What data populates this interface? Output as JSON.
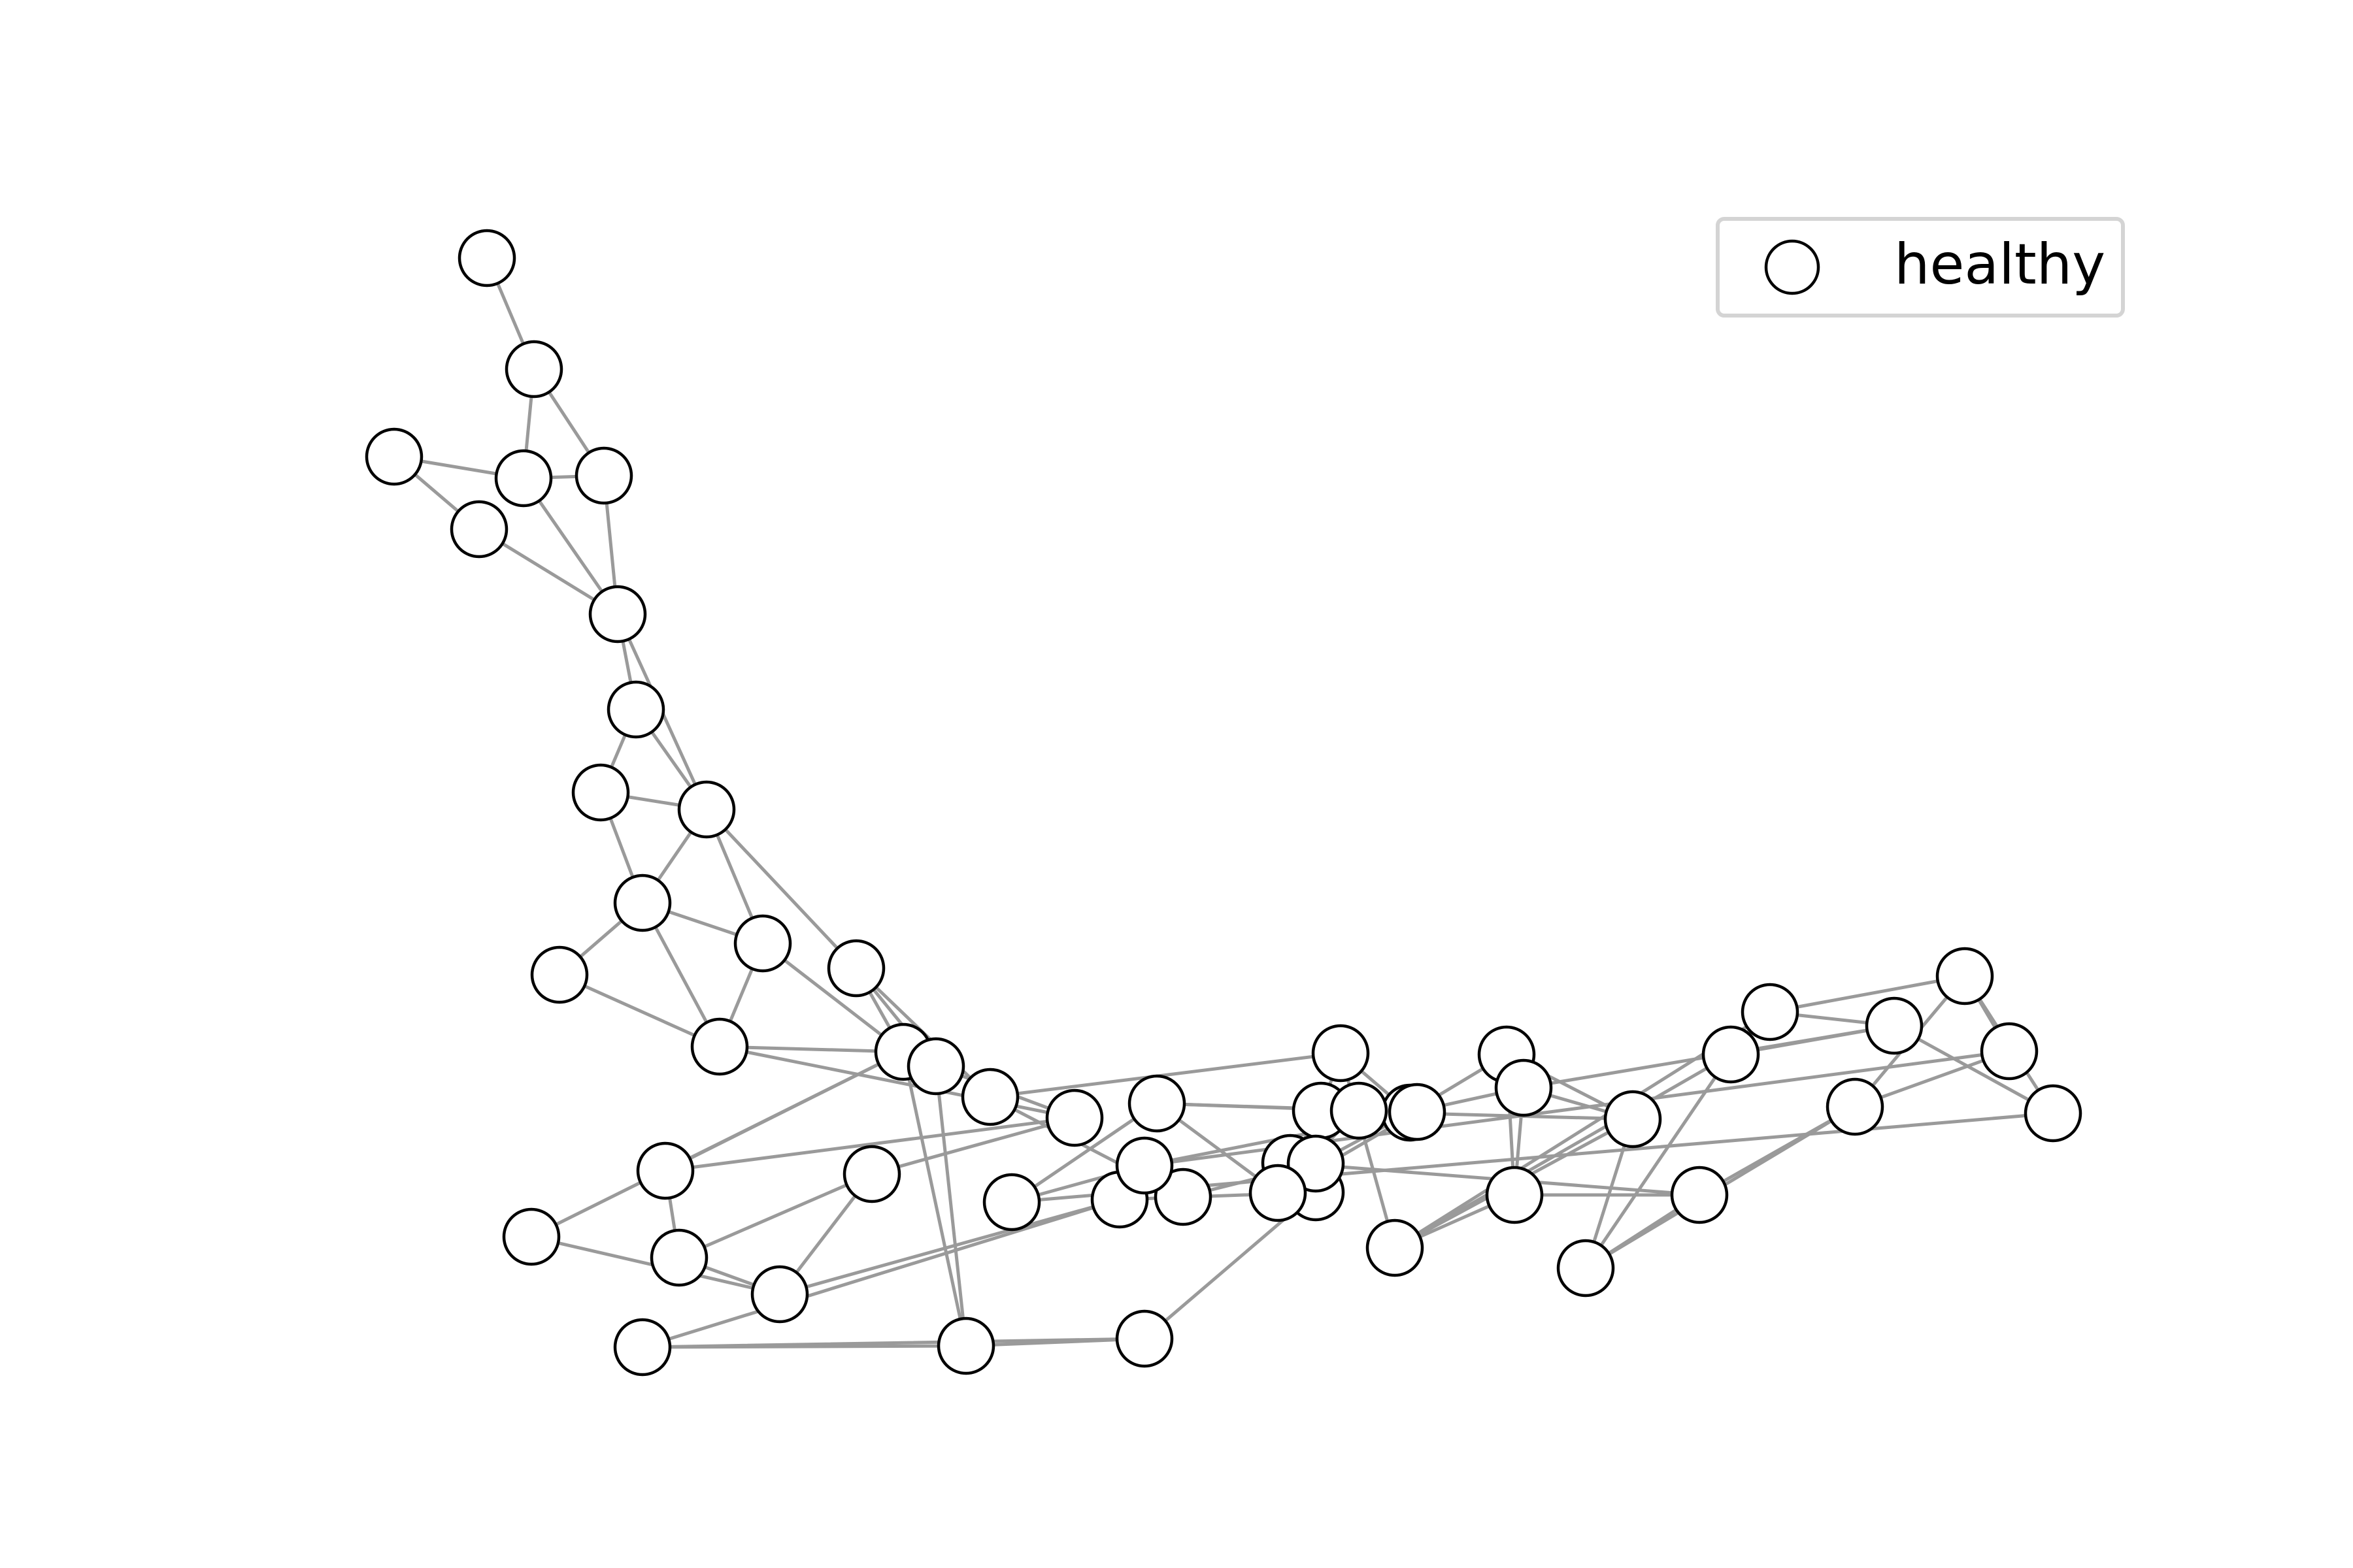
{
  "legend": {
    "label": "healthy",
    "marker_fill": "#ffffff",
    "marker_stroke": "#000000",
    "placement": "upper right"
  },
  "style": {
    "edge_color": "#9a9a9a",
    "node_fill": "#ffffff",
    "node_stroke": "#000000"
  },
  "graph": {
    "node_count": 55,
    "edges": [
      [
        "n0",
        "n1"
      ],
      [
        "n1",
        "n2"
      ],
      [
        "n1",
        "n3"
      ],
      [
        "n2",
        "n3"
      ],
      [
        "n4",
        "n2"
      ],
      [
        "n4",
        "n5"
      ],
      [
        "n2",
        "n6"
      ],
      [
        "n3",
        "n6"
      ],
      [
        "n5",
        "n6"
      ],
      [
        "n6",
        "n7"
      ],
      [
        "n6",
        "n9"
      ],
      [
        "n7",
        "n8"
      ],
      [
        "n7",
        "n9"
      ],
      [
        "n8",
        "n9"
      ],
      [
        "n9",
        "n10"
      ],
      [
        "n8",
        "n10"
      ],
      [
        "n9",
        "n12"
      ],
      [
        "n9",
        "n14"
      ],
      [
        "n10",
        "n12"
      ],
      [
        "n10",
        "n11"
      ],
      [
        "n11",
        "n13"
      ],
      [
        "n12",
        "n13"
      ],
      [
        "n12",
        "n15"
      ],
      [
        "n14",
        "n16"
      ],
      [
        "n14",
        "n17"
      ],
      [
        "n14",
        "n15"
      ],
      [
        "n10",
        "n13"
      ],
      [
        "n13",
        "n15"
      ],
      [
        "n13",
        "n18"
      ],
      [
        "n15",
        "n19"
      ],
      [
        "n18",
        "n19"
      ],
      [
        "n18",
        "n21"
      ],
      [
        "n19",
        "n20"
      ],
      [
        "n21",
        "n20"
      ],
      [
        "n21",
        "n22"
      ],
      [
        "n20",
        "n22"
      ],
      [
        "n22",
        "n23"
      ],
      [
        "n15",
        "n23"
      ],
      [
        "n16",
        "n18"
      ],
      [
        "n15",
        "n24"
      ],
      [
        "n16",
        "n24"
      ],
      [
        "n24",
        "n25"
      ],
      [
        "n24",
        "n26"
      ],
      [
        "n25",
        "n26"
      ],
      [
        "n25",
        "n27"
      ],
      [
        "n27",
        "n22"
      ],
      [
        "n27",
        "n29"
      ],
      [
        "n26",
        "n29"
      ],
      [
        "n17",
        "n28"
      ],
      [
        "n17",
        "n30"
      ],
      [
        "n30",
        "n31"
      ],
      [
        "n31",
        "n32"
      ],
      [
        "n32",
        "n33"
      ],
      [
        "n33",
        "n34"
      ],
      [
        "n34",
        "n35"
      ],
      [
        "n34",
        "n30"
      ],
      [
        "n35",
        "n36"
      ],
      [
        "n34",
        "n36"
      ],
      [
        "n35",
        "n37"
      ],
      [
        "n35",
        "n38"
      ],
      [
        "n36",
        "n37"
      ],
      [
        "n36",
        "n38"
      ],
      [
        "n37",
        "n39"
      ],
      [
        "n37",
        "n40"
      ],
      [
        "n38",
        "n39"
      ],
      [
        "n38",
        "n41"
      ],
      [
        "n39",
        "n42"
      ],
      [
        "n39",
        "n43"
      ],
      [
        "n40",
        "n41"
      ],
      [
        "n40",
        "n42"
      ],
      [
        "n41",
        "n44"
      ],
      [
        "n42",
        "n45"
      ],
      [
        "n43",
        "n45"
      ],
      [
        "n43",
        "n46"
      ],
      [
        "n44",
        "n46"
      ],
      [
        "n44",
        "n47"
      ],
      [
        "n45",
        "n48"
      ],
      [
        "n46",
        "n48"
      ],
      [
        "n46",
        "n47"
      ],
      [
        "n47",
        "n49"
      ],
      [
        "n48",
        "n50"
      ],
      [
        "n49",
        "n50"
      ],
      [
        "n49",
        "n51"
      ],
      [
        "n50",
        "n52"
      ],
      [
        "n51",
        "n52"
      ],
      [
        "n51",
        "n53"
      ],
      [
        "n52",
        "n54"
      ],
      [
        "n52",
        "n53"
      ],
      [
        "n53",
        "n54"
      ],
      [
        "n40",
        "n44"
      ],
      [
        "n31",
        "n37"
      ],
      [
        "n32",
        "n41"
      ],
      [
        "n36",
        "n45"
      ],
      [
        "n28",
        "n33"
      ],
      [
        "n29",
        "n33"
      ],
      [
        "n30",
        "n39"
      ]
    ]
  }
}
